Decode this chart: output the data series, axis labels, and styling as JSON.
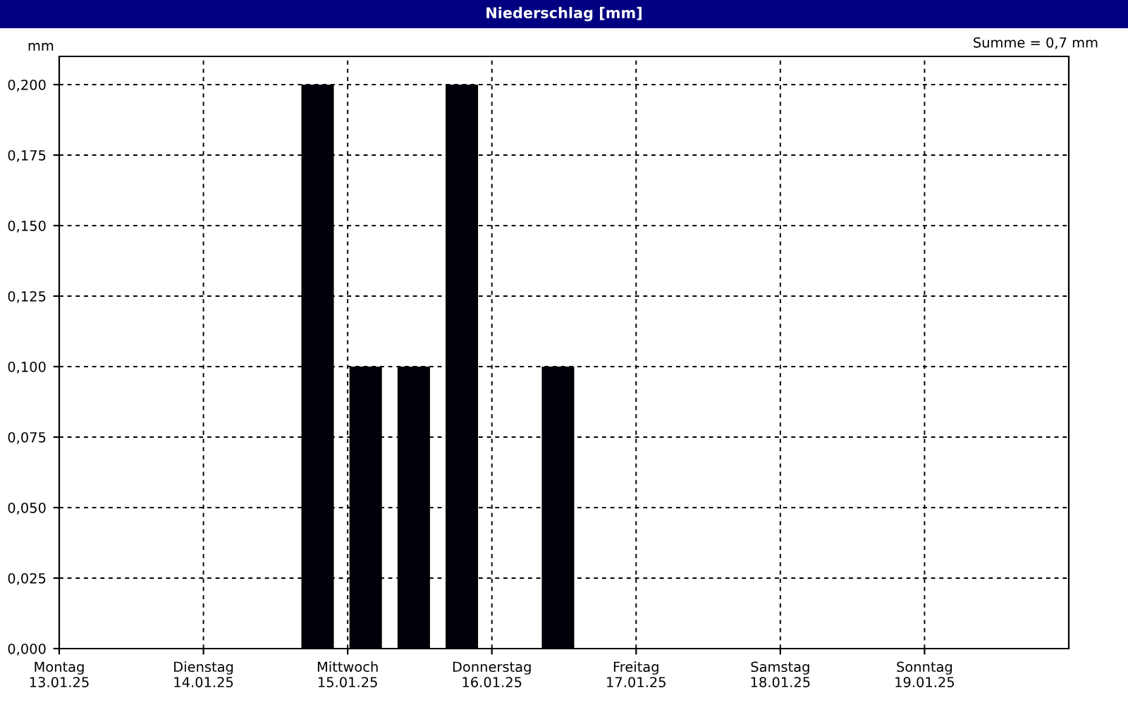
{
  "chart_data": {
    "type": "bar",
    "title": "Niederschlag [mm]",
    "ylabel": "mm",
    "annotations": [
      "Summe = 0,7 mm"
    ],
    "x": [
      "--01-14T19:00",
      "--01-15T03:00",
      "--01-15T11:00",
      "--01-15T19:00",
      "--01-16T11:00"
    ],
    "values": [
      0.2,
      0.1,
      0.1,
      0.2,
      0.1
    ],
    "color": "#000008",
    "xlim": [
      "--01-13T00:00",
      "--01-20T00:00"
    ],
    "xticks": [
      {
        "value": "--01-13",
        "label": "Montag\n13.01.25"
      },
      {
        "value": "--01-14",
        "label": "Dienstag\n14.01.25"
      },
      {
        "value": "--01-15",
        "label": "Mittwoch\n15.01.25"
      },
      {
        "value": "--01-16",
        "label": "Donnerstag\n16.01.25"
      },
      {
        "value": "--01-17",
        "label": "Freitag\n17.01.25"
      },
      {
        "value": "--01-18",
        "label": "Samstag\n18.01.25"
      },
      {
        "value": "--01-19",
        "label": "Sonntag\n19.01.25"
      }
    ],
    "ylim": [
      0,
      0.21
    ],
    "yticks": [
      {
        "value": 0,
        "label": "0,000"
      },
      {
        "value": 0.025,
        "label": "0,025"
      },
      {
        "value": 0.05,
        "label": "0,050"
      },
      {
        "value": 0.075,
        "label": "0,075"
      },
      {
        "value": 0.1,
        "label": "0,100"
      },
      {
        "value": 0.125,
        "label": "0,125"
      },
      {
        "value": 0.15,
        "label": "0,150"
      },
      {
        "value": 0.175,
        "label": "0,175"
      },
      {
        "value": 0.2,
        "label": "0,200"
      }
    ],
    "grid": true,
    "legend": false
  }
}
